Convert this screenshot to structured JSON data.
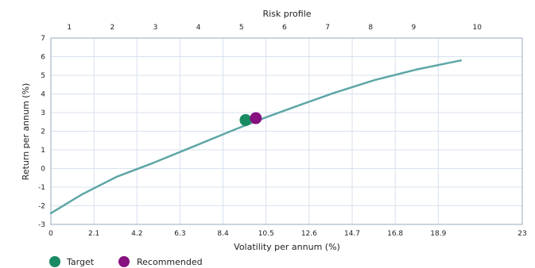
{
  "chart_data": {
    "type": "line",
    "top_axis_label": "Risk profile",
    "xlabel": "Volatility per annum (%)",
    "ylabel": "Return per annum (%)",
    "xlim": [
      0,
      23
    ],
    "ylim": [
      -3,
      7
    ],
    "x_ticks": [
      "0",
      "2.1",
      "4.2",
      "6.3",
      "8.4",
      "10.5",
      "12.6",
      "14.7",
      "16.8",
      "18.9",
      "23"
    ],
    "x_tick_values": [
      0,
      2.1,
      4.2,
      6.3,
      8.4,
      10.5,
      12.6,
      14.7,
      16.8,
      18.9,
      23
    ],
    "y_ticks": [
      -3,
      -2,
      -1,
      0,
      1,
      2,
      3,
      4,
      5,
      6,
      7
    ],
    "top_ticks": [
      "1",
      "2",
      "3",
      "4",
      "5",
      "6",
      "7",
      "8",
      "9",
      "10"
    ],
    "top_tick_values": [
      0.9,
      3.0,
      5.1,
      7.2,
      9.3,
      11.4,
      13.5,
      15.6,
      17.7,
      20.8
    ],
    "grid": true,
    "series": [
      {
        "color": "#5fa6a6",
        "x": [
          0,
          1.5,
          3.2,
          5.0,
          7.0,
          9.0,
          10.5,
          12.0,
          13.8,
          15.8,
          17.8,
          20.0
        ],
        "y": [
          -2.4,
          -1.4,
          -0.45,
          0.3,
          1.2,
          2.1,
          2.75,
          3.35,
          4.05,
          4.75,
          5.3,
          5.8
        ]
      }
    ],
    "points": [
      {
        "name": "Target",
        "x": 9.5,
        "y": 2.6,
        "color": "#1a8a63"
      },
      {
        "name": "Recommended",
        "x": 10.0,
        "y": 2.7,
        "color": "#86117f"
      }
    ],
    "legend": [
      {
        "label": "Target",
        "color": "#1a8a63"
      },
      {
        "label": "Recommended",
        "color": "#86117f"
      }
    ],
    "legend_position": "bottom-left"
  }
}
